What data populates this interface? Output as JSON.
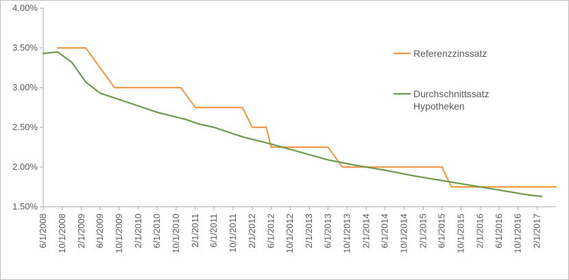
{
  "colors": {
    "background": "#ffffff",
    "axis": "#a6a6a6",
    "text": "#595959",
    "referenzzinssatz": "#f29a4a",
    "durchschnittssatz": "#6a994a"
  },
  "chart_data": {
    "type": "line",
    "title": "",
    "xlabel": "",
    "ylabel": "",
    "grid": false,
    "legend_position": "right",
    "ylim": [
      0.015,
      0.04
    ],
    "xlim": [
      "2008-06-01",
      "2017-06-01"
    ],
    "y_ticks": [
      0.015,
      0.02,
      0.025,
      0.03,
      0.035,
      0.04
    ],
    "y_tick_labels": [
      "1.50%",
      "2.00%",
      "2.50%",
      "3.00%",
      "3.50%",
      "4.00%"
    ],
    "x_ticks": [
      "2008-06-01",
      "2008-10-01",
      "2009-02-01",
      "2009-06-01",
      "2009-10-01",
      "2010-02-01",
      "2010-06-01",
      "2010-10-01",
      "2011-02-01",
      "2011-06-01",
      "2011-10-01",
      "2012-02-01",
      "2012-06-01",
      "2012-10-01",
      "2013-02-01",
      "2013-06-01",
      "2013-10-01",
      "2014-02-01",
      "2014-06-01",
      "2014-10-01",
      "2015-02-01",
      "2015-06-01",
      "2015-10-01",
      "2016-02-01",
      "2016-06-01",
      "2016-10-01",
      "2017-02-01"
    ],
    "x_tick_labels": [
      "6/1/2008",
      "10/1/2008",
      "2/1/2009",
      "6/1/2009",
      "10/1/2009",
      "2/1/2010",
      "6/1/2010",
      "10/1/2010",
      "2/1/2011",
      "6/1/2011",
      "10/1/2011",
      "2/1/2012",
      "6/1/2012",
      "10/1/2012",
      "2/1/2013",
      "6/1/2013",
      "10/1/2013",
      "2/1/2014",
      "6/1/2014",
      "10/1/2014",
      "2/1/2015",
      "6/1/2015",
      "10/1/2015",
      "2/1/2016",
      "6/1/2016",
      "10/1/2016",
      "2/1/2017"
    ],
    "series": [
      {
        "name": "Referenzzinssatz",
        "color": "#f29a4a",
        "points": [
          [
            "2008-09-01",
            0.035
          ],
          [
            "2009-03-01",
            0.035
          ],
          [
            "2009-09-01",
            0.03
          ],
          [
            "2010-11-01",
            0.03
          ],
          [
            "2011-02-01",
            0.0275
          ],
          [
            "2011-12-01",
            0.0275
          ],
          [
            "2012-02-01",
            0.025
          ],
          [
            "2012-05-01",
            0.025
          ],
          [
            "2012-06-01",
            0.0225
          ],
          [
            "2013-06-01",
            0.0225
          ],
          [
            "2013-09-01",
            0.02
          ],
          [
            "2015-06-01",
            0.02
          ],
          [
            "2015-08-01",
            0.0175
          ],
          [
            "2017-06-01",
            0.0175
          ]
        ]
      },
      {
        "name": "Durchschnittssatz Hypotheken",
        "color": "#6a994a",
        "points": [
          [
            "2008-06-01",
            0.0343
          ],
          [
            "2008-09-01",
            0.0345
          ],
          [
            "2008-12-01",
            0.0332
          ],
          [
            "2009-03-01",
            0.0307
          ],
          [
            "2009-06-01",
            0.0293
          ],
          [
            "2009-12-01",
            0.0281
          ],
          [
            "2010-06-01",
            0.0269
          ],
          [
            "2010-12-01",
            0.026
          ],
          [
            "2011-03-01",
            0.0254
          ],
          [
            "2011-06-01",
            0.025
          ],
          [
            "2011-12-01",
            0.0238
          ],
          [
            "2012-06-01",
            0.0229
          ],
          [
            "2012-12-01",
            0.0219
          ],
          [
            "2013-06-01",
            0.0209
          ],
          [
            "2013-12-01",
            0.0202
          ],
          [
            "2014-06-01",
            0.0196
          ],
          [
            "2014-12-01",
            0.0189
          ],
          [
            "2015-06-01",
            0.0183
          ],
          [
            "2015-12-01",
            0.0177
          ],
          [
            "2016-06-01",
            0.0171
          ],
          [
            "2016-12-01",
            0.0165
          ],
          [
            "2017-03-01",
            0.0163
          ]
        ]
      }
    ],
    "legend": [
      {
        "lines": [
          "Referenzzinssatz"
        ]
      },
      {
        "lines": [
          "Durchschnittssatz",
          "Hypotheken"
        ]
      }
    ]
  }
}
